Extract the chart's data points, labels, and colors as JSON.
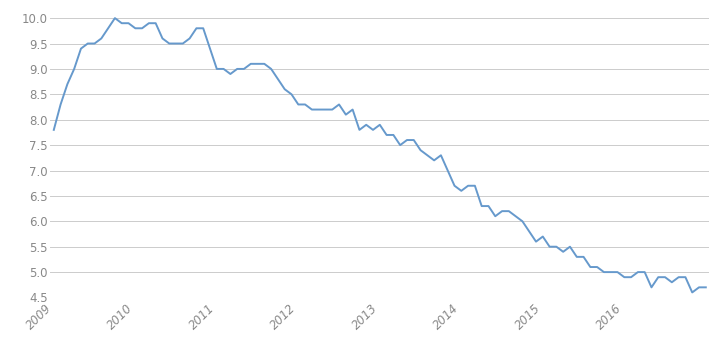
{
  "line_color": "#6699CC",
  "background_color": "#ffffff",
  "grid_color": "#cccccc",
  "ylim": [
    4.5,
    10.15
  ],
  "yticks": [
    4.5,
    5.0,
    5.5,
    6.0,
    6.5,
    7.0,
    7.5,
    8.0,
    8.5,
    9.0,
    9.5,
    10.0
  ],
  "xtick_labels": [
    "2009",
    "2010",
    "2011",
    "2012",
    "2013",
    "2014",
    "2015",
    "2016"
  ],
  "xtick_positions": [
    0,
    12,
    24,
    36,
    48,
    60,
    72,
    84
  ],
  "unemployment": [
    7.8,
    8.3,
    8.7,
    9.0,
    9.4,
    9.5,
    9.5,
    9.6,
    9.8,
    10.0,
    9.9,
    9.9,
    9.8,
    9.8,
    9.9,
    9.9,
    9.6,
    9.5,
    9.5,
    9.5,
    9.6,
    9.8,
    9.8,
    9.4,
    9.0,
    9.0,
    8.9,
    9.0,
    9.0,
    9.1,
    9.1,
    9.1,
    9.0,
    8.8,
    8.6,
    8.5,
    8.3,
    8.3,
    8.2,
    8.2,
    8.2,
    8.2,
    8.3,
    8.1,
    8.2,
    7.8,
    7.9,
    7.8,
    7.9,
    7.7,
    7.7,
    7.5,
    7.6,
    7.6,
    7.4,
    7.3,
    7.2,
    7.3,
    7.0,
    6.7,
    6.6,
    6.7,
    6.7,
    6.3,
    6.3,
    6.1,
    6.2,
    6.2,
    6.1,
    6.0,
    5.8,
    5.6,
    5.7,
    5.5,
    5.5,
    5.4,
    5.5,
    5.3,
    5.3,
    5.1,
    5.1,
    5.0,
    5.0,
    5.0,
    4.9,
    4.9,
    5.0,
    5.0,
    4.7,
    4.9,
    4.9,
    4.8,
    4.9,
    4.9,
    4.6,
    4.7,
    4.7
  ],
  "tick_label_color": "#888888",
  "tick_fontsize": 8.5,
  "linewidth": 1.4
}
